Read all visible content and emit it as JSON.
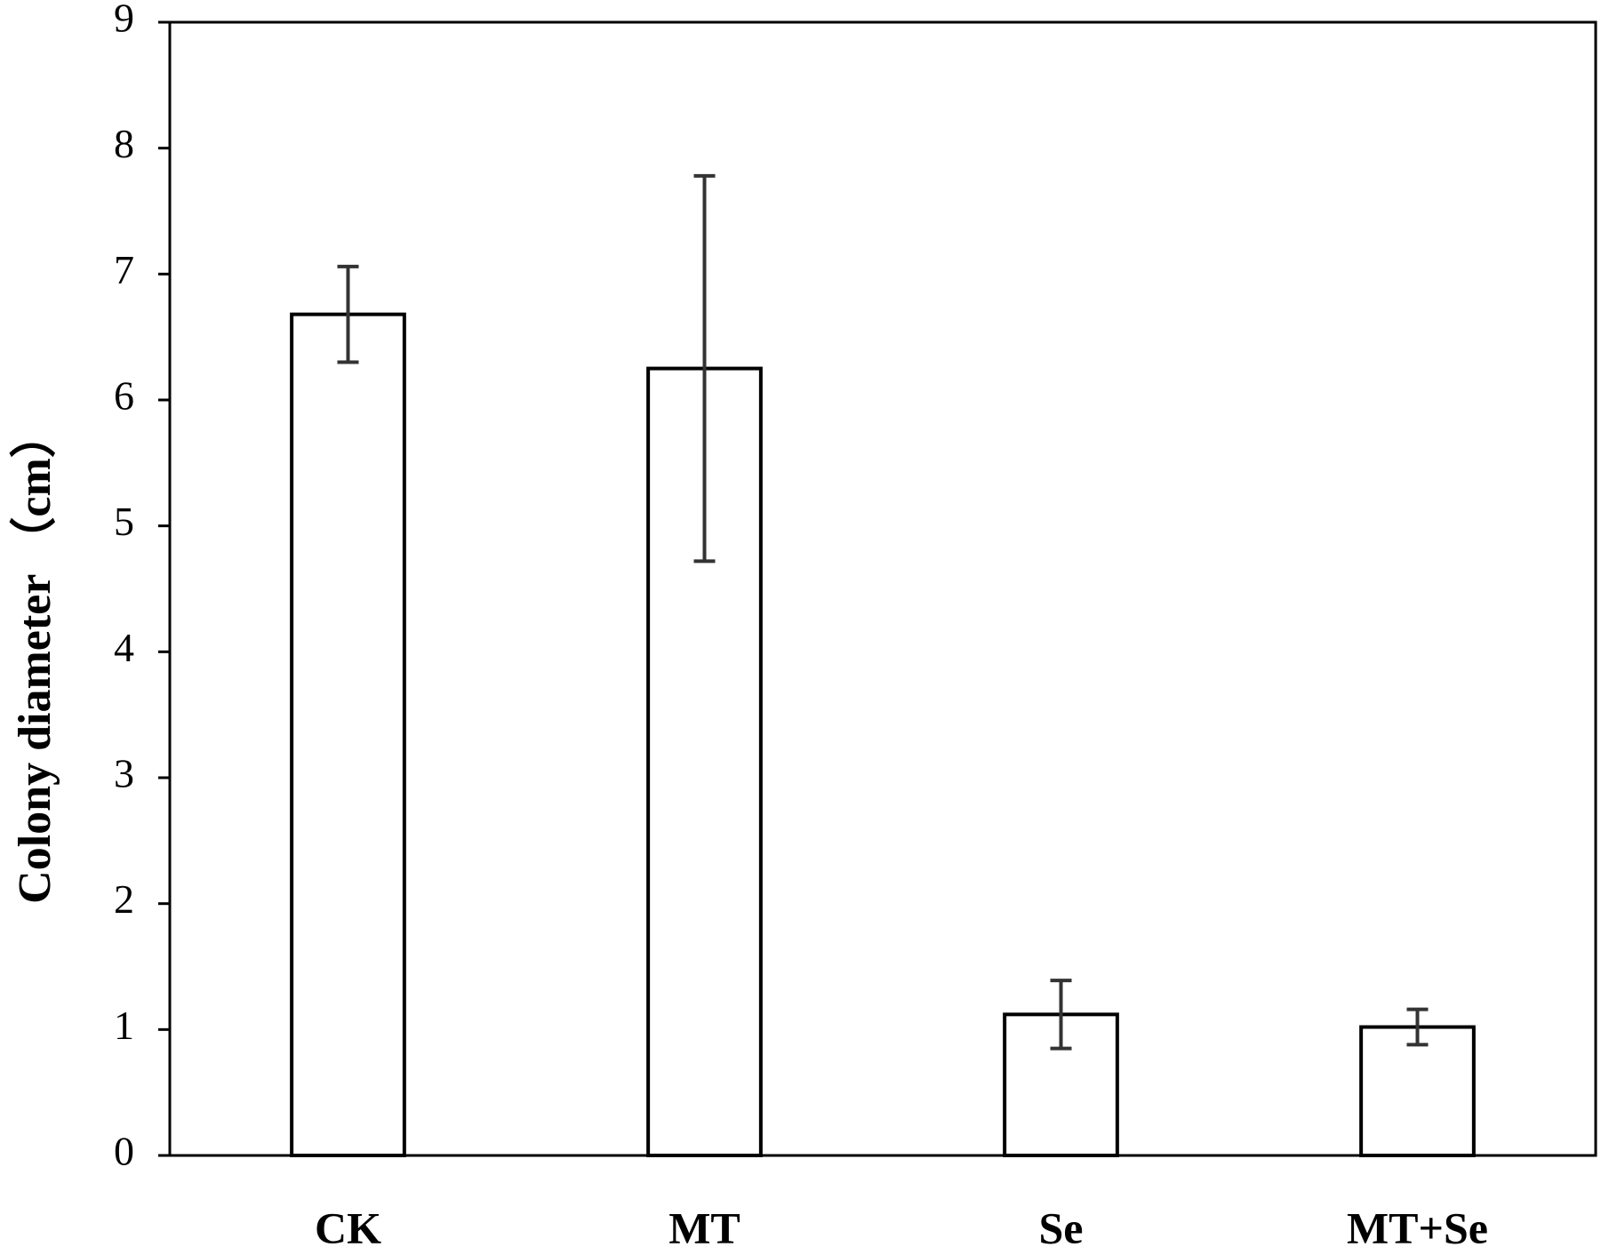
{
  "chart_data": {
    "type": "bar",
    "y_label": "Colony diameter （cm）",
    "categories": [
      "CK",
      "MT",
      "Se",
      "MT+Se"
    ],
    "values": [
      6.68,
      6.25,
      1.12,
      1.02
    ],
    "errors": [
      0.38,
      1.53,
      0.27,
      0.14
    ],
    "color": "#ffffff",
    "edge_color": "#000000",
    "error_color": "#333333",
    "ylim": [
      0,
      9
    ],
    "yticks": [
      0,
      1,
      2,
      3,
      4,
      5,
      6,
      7,
      8,
      9
    ],
    "grid": false
  }
}
